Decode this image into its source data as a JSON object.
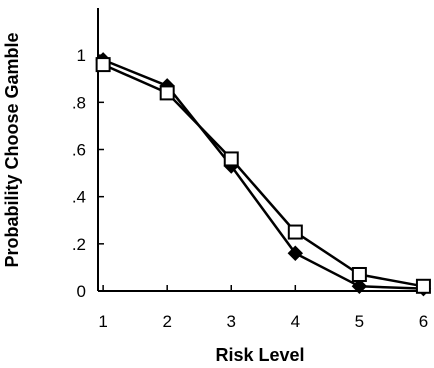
{
  "chart_data": {
    "type": "line",
    "title": "",
    "xlabel": "Risk Level",
    "ylabel": "Probability Choose Gamble",
    "x": [
      1,
      2,
      3,
      4,
      5,
      6
    ],
    "x_tick_labels": [
      "1",
      "2",
      "3",
      "4",
      "5",
      "6"
    ],
    "y_tick_values": [
      0,
      0.2,
      0.4,
      0.6,
      0.8,
      1.0
    ],
    "y_tick_labels": [
      "0",
      ".2",
      ".4",
      ".6",
      ".8",
      "1"
    ],
    "xlim": [
      1,
      6
    ],
    "ylim": [
      0,
      1.2
    ],
    "grid": false,
    "legend": "none",
    "series": [
      {
        "marker": "filled-diamond",
        "color": "#000000",
        "values": [
          0.98,
          0.87,
          0.53,
          0.16,
          0.02,
          0.01
        ]
      },
      {
        "marker": "open-square",
        "color": "#000000",
        "values": [
          0.96,
          0.84,
          0.56,
          0.25,
          0.07,
          0.02
        ]
      }
    ]
  }
}
